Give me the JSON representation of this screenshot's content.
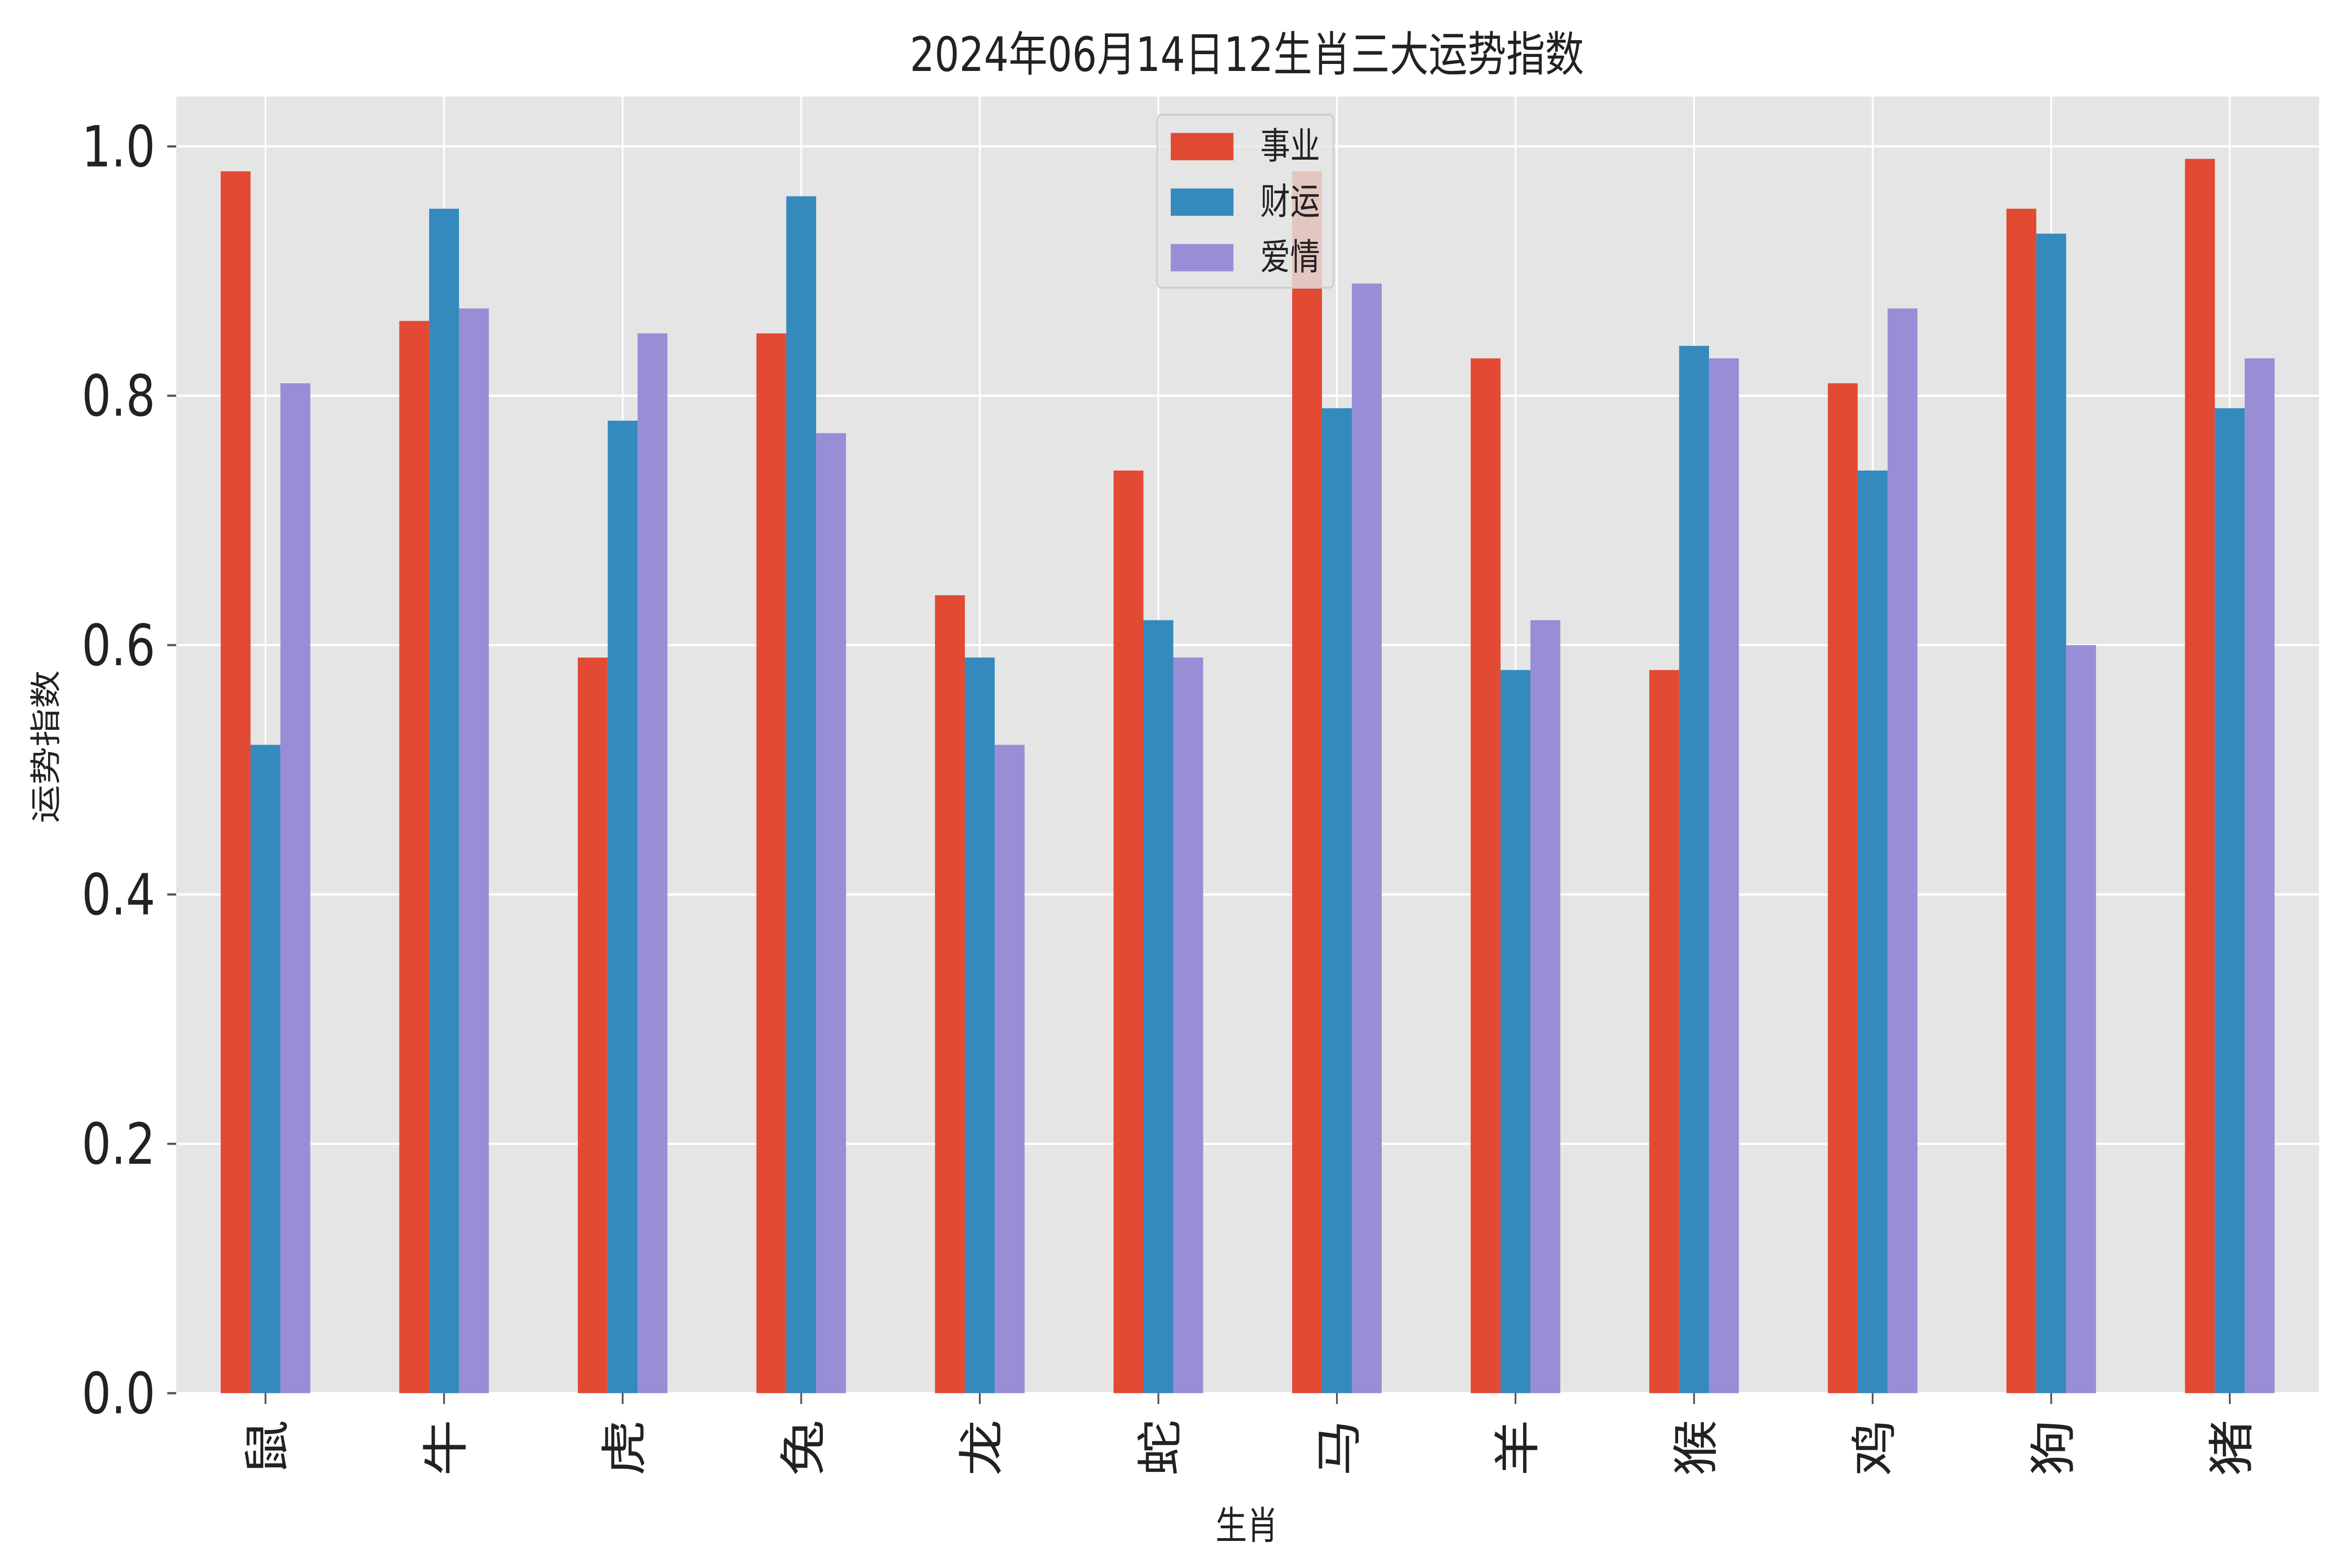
{
  "chart_data": {
    "type": "bar",
    "title": "2024年06月14日12生肖三大运势指数",
    "xlabel": "生肖",
    "ylabel": "运势指数",
    "categories": [
      "鼠",
      "牛",
      "虎",
      "兔",
      "龙",
      "蛇",
      "马",
      "羊",
      "猴",
      "鸡",
      "狗",
      "猪"
    ],
    "series": [
      {
        "name": "事业",
        "color": "#E24A33",
        "values": [
          0.98,
          0.86,
          0.59,
          0.85,
          0.64,
          0.74,
          0.98,
          0.83,
          0.58,
          0.81,
          0.95,
          0.99
        ]
      },
      {
        "name": "财运",
        "color": "#348ABD",
        "values": [
          0.52,
          0.95,
          0.78,
          0.96,
          0.59,
          0.62,
          0.79,
          0.58,
          0.84,
          0.74,
          0.93,
          0.79
        ]
      },
      {
        "name": "爱情",
        "color": "#988ED5",
        "values": [
          0.81,
          0.87,
          0.85,
          0.77,
          0.52,
          0.59,
          0.89,
          0.62,
          0.83,
          0.87,
          0.6,
          0.83
        ]
      }
    ],
    "yticks": [
      "0.0",
      "0.2",
      "0.4",
      "0.6",
      "0.8",
      "1.0"
    ],
    "ylim": [
      0,
      1.04
    ],
    "grid": true,
    "legend_position": "top-center",
    "background": "#E5E5E5"
  }
}
